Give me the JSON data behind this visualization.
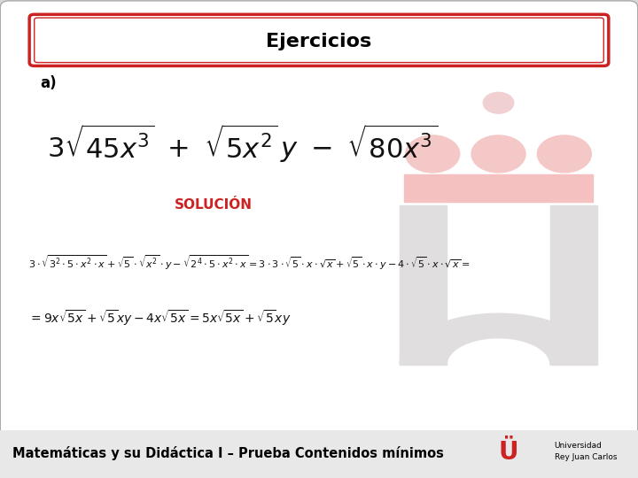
{
  "title": "Ejercicios",
  "label_a": "a)",
  "solucion_text": "SOLUCIÓN",
  "bg_color": "#d8d8d8",
  "slide_bg": "#ffffff",
  "title_border_color": "#cc2222",
  "solucion_color": "#cc2222",
  "footer_text": "Matemáticas y su Didáctica I – Prueba Contenidos mínimos",
  "footer_bg": "#e8e8e8",
  "footer_text_color": "#000000",
  "wm_circle_color": "#f5c8c8",
  "wm_rect_color": "#f5c0c0",
  "wm_u_color": "#e0dede",
  "wm_circle_small_color": "#f0d0d0"
}
